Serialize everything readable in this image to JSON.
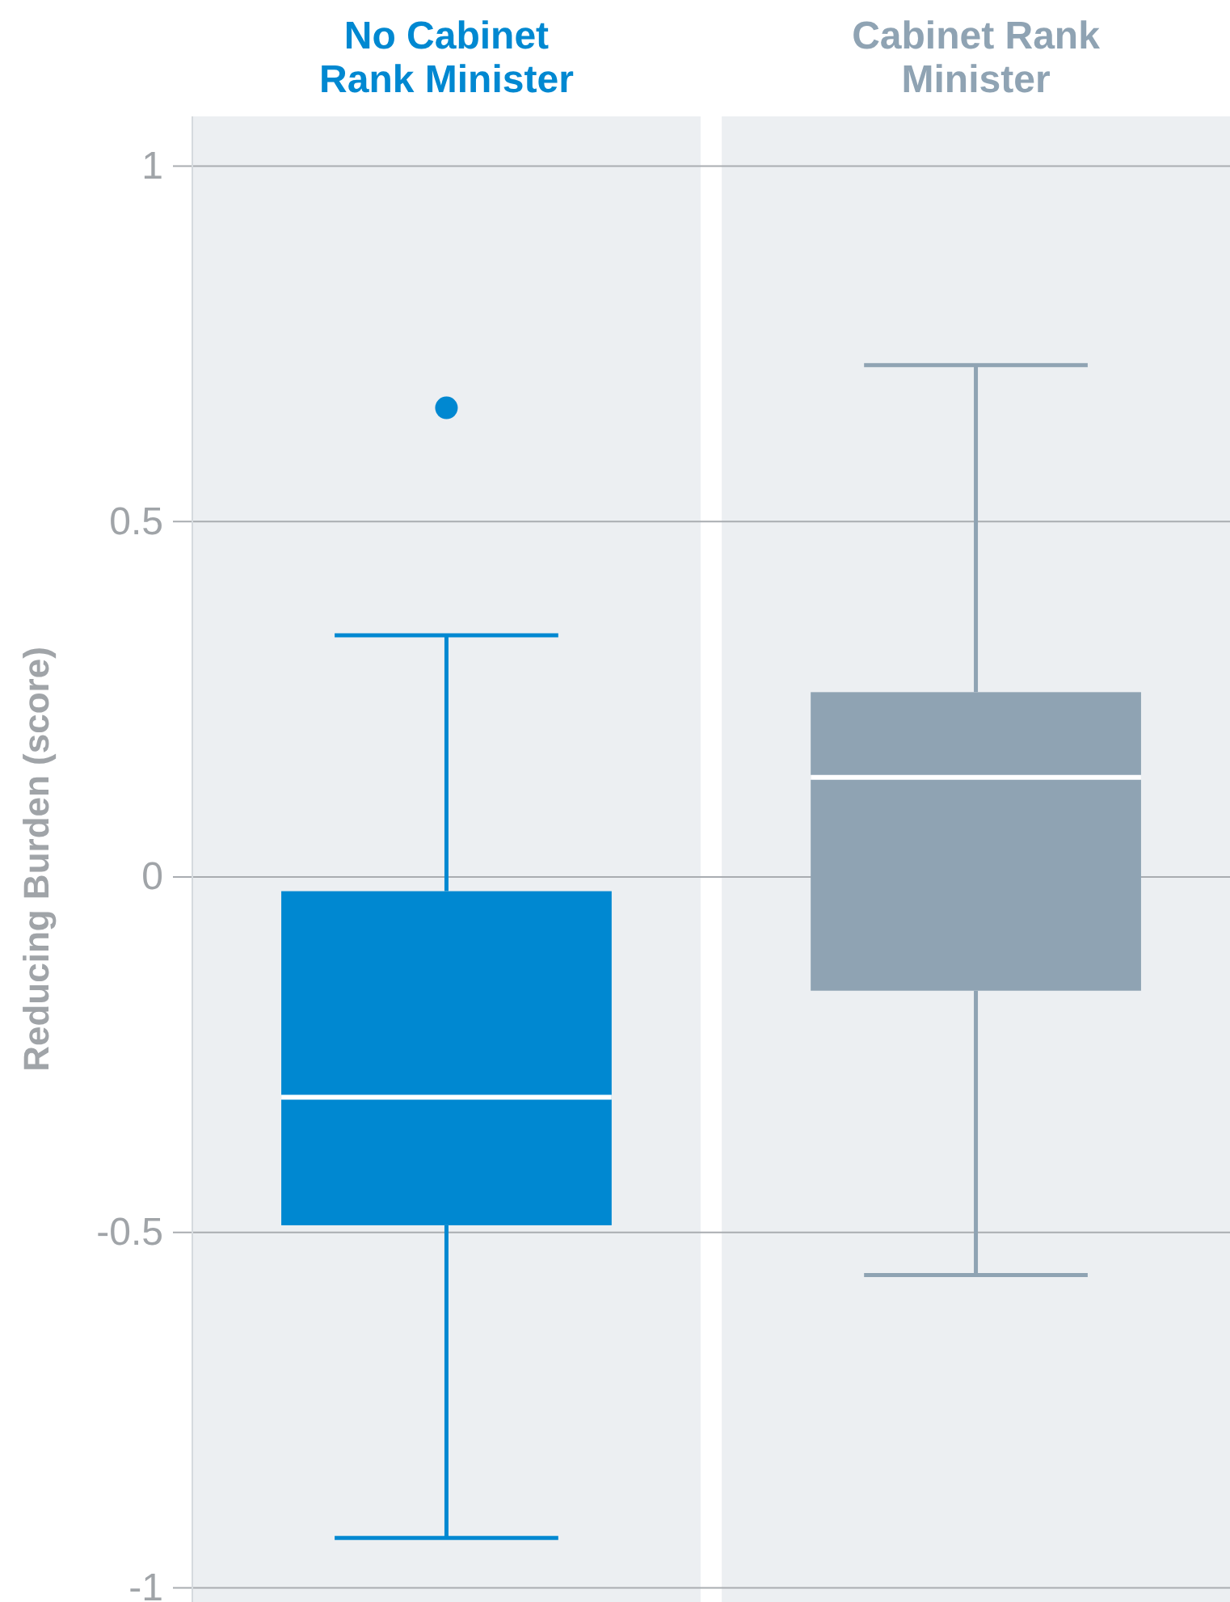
{
  "chart_data": {
    "type": "box",
    "ylabel": "Reducing Burden (score)",
    "categories": [
      "No Cabinet Rank Minister",
      "Cabinet Rank Minister"
    ],
    "colors": [
      "#0088d1",
      "#8fa3b3"
    ],
    "boxes": [
      {
        "low": -0.93,
        "q1": -0.49,
        "median": -0.31,
        "q3": -0.02,
        "high": 0.34,
        "outliers": [
          0.66
        ]
      },
      {
        "low": -0.56,
        "q1": -0.16,
        "median": 0.14,
        "q3": 0.26,
        "high": 0.72
      }
    ],
    "ylim": [
      -1.02,
      1.07
    ],
    "yticks": [
      -1,
      -0.5,
      0,
      0.5,
      1
    ],
    "grid": "y"
  }
}
